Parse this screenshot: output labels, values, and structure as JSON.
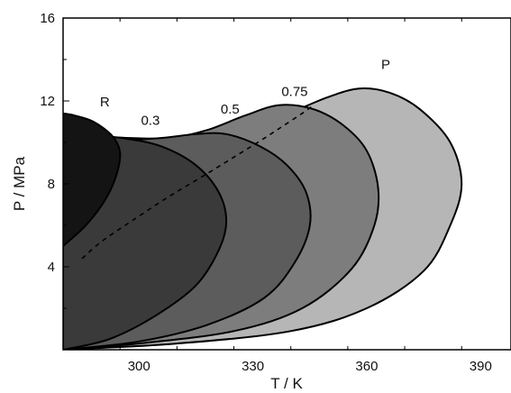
{
  "chart_data": {
    "type": "area",
    "title": "",
    "xlabel": "T / K",
    "ylabel": "P / MPa",
    "xlim": [
      280,
      398
    ],
    "ylim": [
      0,
      16
    ],
    "xticks": [
      300,
      330,
      360,
      390
    ],
    "yticks": [
      4,
      8,
      12,
      16
    ],
    "grid": false,
    "legend": "none",
    "series": [
      {
        "name": "P",
        "color": "#b6b6b6",
        "points": [
          [
            280,
            0
          ],
          [
            310,
            0.3
          ],
          [
            340,
            0.9
          ],
          [
            360,
            2.0
          ],
          [
            375,
            3.8
          ],
          [
            382,
            6.0
          ],
          [
            385,
            8.0
          ],
          [
            382,
            10.0
          ],
          [
            374,
            11.6
          ],
          [
            366,
            12.4
          ],
          [
            358,
            12.6
          ],
          [
            350,
            12.2
          ],
          [
            342,
            11.6
          ],
          [
            332,
            10.9
          ],
          [
            322,
            10.4
          ],
          [
            310,
            10.2
          ],
          [
            300,
            10.2
          ],
          [
            290,
            10.3
          ],
          [
            280,
            10.5
          ]
        ]
      },
      {
        "name": "0.75",
        "color": "#7d7d7d",
        "points": [
          [
            280,
            0
          ],
          [
            300,
            0.3
          ],
          [
            325,
            0.9
          ],
          [
            343,
            2.0
          ],
          [
            356,
            3.9
          ],
          [
            362,
            6.0
          ],
          [
            363,
            7.8
          ],
          [
            360,
            9.6
          ],
          [
            354,
            10.8
          ],
          [
            346,
            11.6
          ],
          [
            337,
            11.8
          ],
          [
            328,
            11.3
          ],
          [
            318,
            10.6
          ],
          [
            308,
            10.2
          ],
          [
            296,
            10.1
          ],
          [
            280,
            10.3
          ]
        ]
      },
      {
        "name": "0.5",
        "color": "#5c5c5c",
        "points": [
          [
            280,
            0
          ],
          [
            300,
            0.4
          ],
          [
            318,
            1.2
          ],
          [
            333,
            2.5
          ],
          [
            341,
            4.2
          ],
          [
            345,
            6.0
          ],
          [
            344,
            7.6
          ],
          [
            339,
            8.9
          ],
          [
            332,
            9.8
          ],
          [
            323,
            10.4
          ],
          [
            315,
            10.4
          ],
          [
            305,
            10.2
          ],
          [
            292,
            10.1
          ],
          [
            280,
            10.3
          ]
        ]
      },
      {
        "name": "0.3",
        "color": "#3a3a3a",
        "points": [
          [
            280,
            0
          ],
          [
            292,
            0.5
          ],
          [
            304,
            1.6
          ],
          [
            315,
            3.1
          ],
          [
            321,
            4.8
          ],
          [
            323,
            6.2
          ],
          [
            321,
            7.6
          ],
          [
            315,
            8.9
          ],
          [
            306,
            9.8
          ],
          [
            296,
            10.2
          ],
          [
            288,
            10.3
          ],
          [
            280,
            10.3
          ]
        ]
      },
      {
        "name": "R",
        "color": "#141414",
        "points": [
          [
            280,
            5.0
          ],
          [
            286,
            6.0
          ],
          [
            291,
            7.2
          ],
          [
            294,
            8.4
          ],
          [
            295,
            9.5
          ],
          [
            293,
            10.3
          ],
          [
            288,
            11.0
          ],
          [
            283,
            11.3
          ],
          [
            280,
            11.4
          ]
        ]
      }
    ],
    "dashed_line": {
      "name": "",
      "points": [
        [
          285,
          4.4
        ],
        [
          290,
          5.2
        ],
        [
          298,
          6.2
        ],
        [
          308,
          7.4
        ],
        [
          318,
          8.5
        ],
        [
          326,
          9.4
        ],
        [
          333,
          10.2
        ],
        [
          338,
          10.8
        ],
        [
          343,
          11.4
        ],
        [
          346,
          11.8
        ]
      ]
    },
    "annotations": [
      {
        "text": "R",
        "x": 291,
        "y": 11.75
      },
      {
        "text": "0.3",
        "x": 303,
        "y": 10.85
      },
      {
        "text": "0.5",
        "x": 324,
        "y": 11.4
      },
      {
        "text": "0.75",
        "x": 341,
        "y": 12.25
      },
      {
        "text": "P",
        "x": 365,
        "y": 13.55
      }
    ]
  }
}
